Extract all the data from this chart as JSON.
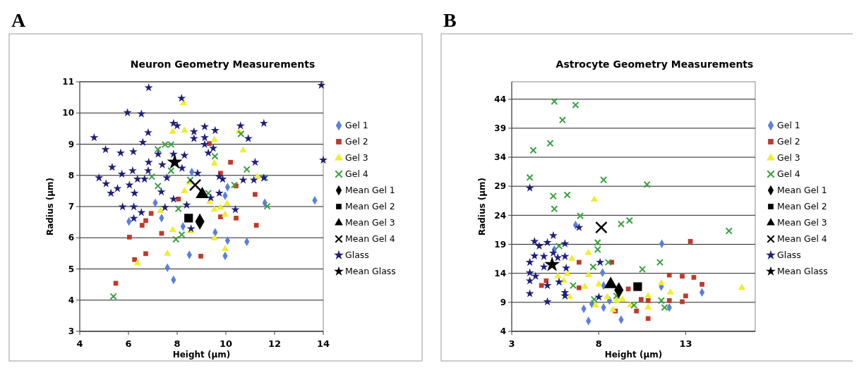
{
  "chart_data": [
    {
      "type": "scatter",
      "title": "Neuron Geometry Measurements",
      "xlabel": "Height (µm)",
      "ylabel": "Radius (µm)",
      "annotations": [
        "A"
      ],
      "xlim": [
        4,
        14
      ],
      "xticks": [
        4,
        6,
        8,
        10,
        12,
        14
      ],
      "ylim": [
        3,
        11
      ],
      "yticks": [
        3,
        4,
        5,
        6,
        7,
        8,
        9,
        10,
        11
      ],
      "grid": "y",
      "legend": "right",
      "series": [
        {
          "name": "Gel 1",
          "color": "#5b7fe0",
          "marker": "diamond",
          "x": [
            6.02,
            7.1,
            7.36,
            7.6,
            7.85,
            8.24,
            8.5,
            8.6,
            9.56,
            10.07,
            9.97,
            10.07,
            9.97,
            10.86,
            11.6,
            13.65
          ],
          "values": [
            6.52,
            7.12,
            6.63,
            5.04,
            4.65,
            6.36,
            5.45,
            8.11,
            6.17,
            5.91,
            5.42,
            7.62,
            7.35,
            5.87,
            7.12,
            7.2
          ]
        },
        {
          "name": "Gel 2",
          "color": "#c0392b",
          "marker": "square",
          "x": [
            5.48,
            6.04,
            6.25,
            6.71,
            6.56,
            6.71,
            6.93,
            7.36,
            8.05,
            8.97,
            9.32,
            9.78,
            9.78,
            10.19,
            10.42,
            10.42,
            11.2,
            11.25
          ],
          "values": [
            4.54,
            6.02,
            5.3,
            5.49,
            6.4,
            6.55,
            6.78,
            6.14,
            7.24,
            5.41,
            9.02,
            8.07,
            6.67,
            8.42,
            7.66,
            6.63,
            7.39,
            6.4
          ]
        },
        {
          "name": "Gel 3",
          "color": "#eeee30",
          "marker": "triangle",
          "x": [
            6.37,
            7.6,
            7.82,
            7.31,
            7.82,
            8.26,
            8.3,
            8.3,
            8.54,
            8.5,
            9.53,
            9.53,
            9.53,
            9.53,
            9.33,
            9.78,
            9.97,
            10.05,
            9.97,
            10.71,
            11.3,
            10.54
          ],
          "values": [
            5.19,
            5.49,
            6.25,
            6.86,
            9.4,
            10.32,
            9.44,
            7.5,
            6.21,
            7.77,
            9.14,
            8.38,
            6.9,
            5.98,
            7.15,
            6.97,
            6.74,
            7.09,
            5.64,
            8.8,
            7.96,
            9.4
          ]
        },
        {
          "name": "Gel 4",
          "color": "#3aa040",
          "marker": "cross",
          "x": [
            5.38,
            7.21,
            7.5,
            7.75,
            6.96,
            7.21,
            8.05,
            7.95,
            8.19,
            8.54,
            9.28,
            9.55,
            10.62,
            10.35,
            10.86,
            11.6,
            11.7,
            7.75
          ],
          "values": [
            4.12,
            8.83,
            8.99,
            8.99,
            7.96,
            7.66,
            6.93,
            5.95,
            6.1,
            7.85,
            7.43,
            8.61,
            9.33,
            7.69,
            8.19,
            7.92,
            7.01,
            8.15
          ]
        },
        {
          "name": "Mean Gel 1",
          "color": "#000000",
          "marker": "diamond",
          "x": [
            8.93
          ],
          "values": [
            6.52
          ]
        },
        {
          "name": "Mean Gel 2",
          "color": "#000000",
          "marker": "square",
          "x": [
            8.47
          ],
          "values": [
            6.63
          ]
        },
        {
          "name": "Mean Gel 3",
          "color": "#000000",
          "marker": "triangle",
          "x": [
            9.03
          ],
          "values": [
            7.39
          ]
        },
        {
          "name": "Mean Gel 4",
          "color": "#000000",
          "marker": "cross",
          "x": [
            8.74
          ],
          "values": [
            7.69
          ]
        },
        {
          "name": "Glass",
          "color": "#1f1f7a",
          "marker": "star",
          "x": [
            4.59,
            5.06,
            4.79,
            5.08,
            5.33,
            5.28,
            5.55,
            5.73,
            5.68,
            5.76,
            5.96,
            6.04,
            6.17,
            6.2,
            6.25,
            6.22,
            6.22,
            6.53,
            6.59,
            6.53,
            6.37,
            6.66,
            6.83,
            6.81,
            6.83,
            6.81,
            7.22,
            7.39,
            7.35,
            7.58,
            7.5,
            7.85,
            8.0,
            7.85,
            7.85,
            8.18,
            8.3,
            8.2,
            8.69,
            8.69,
            8.39,
            8.57,
            8.84,
            9.13,
            9.13,
            9.13,
            9.28,
            9.56,
            9.48,
            9.73,
            9.73,
            9.87,
            10.39,
            10.6,
            10.92,
            10.71,
            11.2,
            11.15,
            11.56,
            11.56,
            13.92,
            14.0,
            9.38
          ],
          "values": [
            9.21,
            8.83,
            7.92,
            7.73,
            8.26,
            7.43,
            7.58,
            8.04,
            8.72,
            6.99,
            10.01,
            7.69,
            8.15,
            8.76,
            7.43,
            6.99,
            6.62,
            9.97,
            9.06,
            6.81,
            7.88,
            7.88,
            10.81,
            9.37,
            8.42,
            8.15,
            8.68,
            8.34,
            7.47,
            7.92,
            6.97,
            9.67,
            9.59,
            8.68,
            7.24,
            10.47,
            8.64,
            8.23,
            9.4,
            9.18,
            7.05,
            6.29,
            8.07,
            9.56,
            9.21,
            8.99,
            8.72,
            9.44,
            8.87,
            7.43,
            7.96,
            7.88,
            6.9,
            9.59,
            9.18,
            7.85,
            8.42,
            7.85,
            9.67,
            7.92,
            10.89,
            8.49,
            7.28
          ]
        },
        {
          "name": "Mean Glass",
          "color": "#000000",
          "marker": "star",
          "x": [
            7.9
          ],
          "values": [
            8.42
          ]
        }
      ]
    },
    {
      "type": "scatter",
      "title": "Astrocyte Geometry Measurements",
      "xlabel": "Height (µm)",
      "ylabel": "Radius (µm)",
      "annotations": [
        "B"
      ],
      "xlim": [
        3,
        17
      ],
      "xticks": [
        3,
        8,
        13
      ],
      "ylim": [
        4,
        47
      ],
      "yticks": [
        4,
        9,
        14,
        19,
        24,
        29,
        34,
        39,
        44
      ],
      "grid": "y",
      "legend": "right",
      "series": [
        {
          "name": "Gel 1",
          "color": "#5b7fe0",
          "marker": "diamond",
          "x": [
            6.67,
            5.45,
            8.22,
            8.28,
            7.14,
            7.41,
            7.61,
            8.28,
            9.29,
            11.63,
            11.6,
            12.06,
            13.94,
            8.62
          ],
          "values": [
            22.3,
            18.1,
            14.1,
            11.9,
            7.9,
            5.8,
            8.7,
            8.1,
            6.0,
            19.1,
            11.7,
            8.1,
            10.7,
            9.3
          ]
        },
        {
          "name": "Gel 2",
          "color": "#c0392b",
          "marker": "square",
          "x": [
            4.71,
            4.98,
            6.87,
            6.87,
            8.75,
            8.96,
            9.7,
            10.17,
            10.44,
            10.84,
            10.84,
            12.06,
            12.06,
            12.8,
            12.8,
            13.0,
            13.47,
            13.94,
            13.27
          ],
          "values": [
            11.9,
            12.7,
            11.5,
            15.9,
            15.9,
            7.5,
            11.3,
            7.5,
            9.5,
            9.3,
            6.2,
            13.7,
            9.3,
            13.5,
            9.1,
            10.1,
            13.3,
            12.1,
            19.5
          ]
        },
        {
          "name": "Gel 3",
          "color": "#eeee30",
          "marker": "triangle",
          "x": [
            7.74,
            6.46,
            7.41,
            5.65,
            5.99,
            6.19,
            6.33,
            7.2,
            7.41,
            7.81,
            8.01,
            8.48,
            8.82,
            9.02,
            9.36,
            9.83,
            10.84,
            10.84,
            11.6,
            12.12,
            16.23
          ],
          "values": [
            26.7,
            16.5,
            17.5,
            13.5,
            12.7,
            13.9,
            9.9,
            11.7,
            13.7,
            8.5,
            12.1,
            9.9,
            7.7,
            9.3,
            9.5,
            8.5,
            10.1,
            8.1,
            12.3,
            10.7,
            11.5
          ]
        },
        {
          "name": "Gel 4",
          "color": "#3aa040",
          "marker": "cross",
          "x": [
            4.04,
            4.24,
            5.21,
            5.45,
            5.92,
            6.67,
            5.39,
            5.45,
            6.19,
            6.94,
            5.72,
            6.53,
            7.68,
            7.94,
            7.94,
            8.28,
            8.55,
            9.29,
            9.77,
            10.51,
            10.78,
            11.52,
            11.6,
            11.79,
            15.49,
            10.03,
            7.74,
            9.02
          ],
          "values": [
            30.5,
            35.2,
            36.4,
            43.6,
            40.4,
            43.0,
            27.3,
            25.1,
            27.5,
            23.9,
            18.7,
            11.9,
            15.1,
            19.3,
            18.1,
            30.1,
            15.9,
            22.5,
            23.1,
            14.7,
            29.3,
            15.9,
            9.3,
            8.1,
            21.3,
            8.5,
            9.5,
            10.1
          ]
        },
        {
          "name": "Mean Gel 1",
          "color": "#000000",
          "marker": "diamond",
          "x": [
            9.16
          ],
          "values": [
            11.1
          ]
        },
        {
          "name": "Mean Gel 2",
          "color": "#000000",
          "marker": "square",
          "x": [
            10.24
          ],
          "values": [
            11.7
          ]
        },
        {
          "name": "Mean Gel 3",
          "color": "#000000",
          "marker": "triangle",
          "x": [
            8.69
          ],
          "values": [
            12.1
          ]
        },
        {
          "name": "Mean Gel 4",
          "color": "#000000",
          "marker": "cross",
          "x": [
            8.15
          ],
          "values": [
            21.9
          ]
        },
        {
          "name": "Glass",
          "color": "#1f1f7a",
          "marker": "star",
          "x": [
            4.04,
            4.04,
            4.04,
            4.04,
            4.04,
            4.31,
            4.31,
            4.58,
            4.37,
            4.85,
            5.05,
            4.85,
            5.39,
            5.05,
            5.05,
            5.39,
            5.65,
            5.72,
            6.06,
            6.06,
            6.13,
            6.06,
            6.06,
            6.87,
            8.08,
            8.01
          ],
          "values": [
            28.7,
            15.9,
            14.1,
            12.7,
            10.5,
            17.0,
            19.5,
            18.7,
            13.5,
            15.1,
            19.3,
            16.9,
            20.5,
            9.1,
            11.9,
            17.5,
            16.7,
            12.5,
            16.9,
            19.1,
            14.9,
            10.7,
            10.1,
            21.9,
            15.9,
            9.9
          ]
        },
        {
          "name": "Mean Glass",
          "color": "#000000",
          "marker": "star",
          "x": [
            5.32
          ],
          "values": [
            15.5
          ]
        }
      ]
    }
  ]
}
